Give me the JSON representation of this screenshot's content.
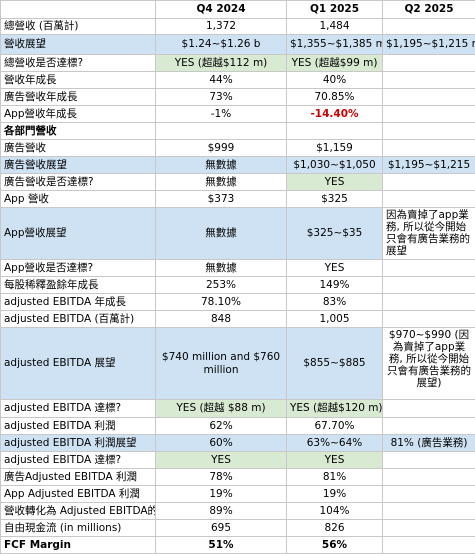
{
  "header": {
    "col0": "總營收 (百萬計)",
    "q4_2024": "Q4 2024",
    "q1_2025": "Q1 2025",
    "q2_2025": "Q2 2025"
  },
  "rows": [
    {
      "label": "總營收 (百萬計)",
      "q4": "1,372",
      "q1": "1,484",
      "q2": ""
    },
    {
      "label": "營收展望",
      "q4": "$1.24~$1.26 b",
      "q1": "$1,355~$1,385 m",
      "q2": "$1,195~$1,215 m"
    },
    {
      "label": "總營收是否達標?",
      "q4": "YES (超越$112 m)",
      "q1": "YES (超越$99 m)",
      "q2": ""
    },
    {
      "label": "營收年成長",
      "q4": "44%",
      "q1": "40%",
      "q2": ""
    },
    {
      "label": "廣告營收年成長",
      "q4": "73%",
      "q1": "70.85%",
      "q2": ""
    },
    {
      "label": "App營收年成長",
      "q4": "-1%",
      "q1": "-14.40%",
      "q2": ""
    },
    {
      "label": "各部門營收",
      "q4": "",
      "q1": "",
      "q2": ""
    },
    {
      "label": "廣告營收",
      "q4": "$999",
      "q1": "$1,159",
      "q2": ""
    },
    {
      "label": "廣告營收展望",
      "q4": "無數據",
      "q1": "$1,030~$1,050",
      "q2": "$1,195~$1,215"
    },
    {
      "label": "廣告營收是否達標?",
      "q4": "無數據",
      "q1": "YES",
      "q2": ""
    },
    {
      "label": "App 營收",
      "q4": "$373",
      "q1": "$325",
      "q2": ""
    },
    {
      "label": "App營收展望",
      "q4": "無數據",
      "q1": "$325~$35",
      "q2": "因為賣掉了app業務, 所以從今開始只會有廣告業務的展望"
    },
    {
      "label": "App營收是否達標?",
      "q4": "無數據",
      "q1": "YES",
      "q2": ""
    },
    {
      "label": "每股稀釋盈餘年成長",
      "q4": "253%",
      "q1": "149%",
      "q2": ""
    },
    {
      "label": "adjusted EBITDA 年成長",
      "q4": "78.10%",
      "q1": "83%",
      "q2": ""
    },
    {
      "label": "adjusted EBITDA (百萬計)",
      "q4": "848",
      "q1": "1,005",
      "q2": ""
    },
    {
      "label": "adjusted EBITDA 展望",
      "q4": "$740 million and $760 million",
      "q1": "$855~$885",
      "q2": "$970~$990 (因為賣掉了app業務, 所以從今開始只會有廣告業務的展望)"
    },
    {
      "label": "adjusted EBITDA 達標?",
      "q4": "YES (超越 $88 m)",
      "q1": "YES (超越$120 m)",
      "q2": ""
    },
    {
      "label": "adjusted EBITDA 利潤",
      "q4": "62%",
      "q1": "67.70%",
      "q2": ""
    },
    {
      "label": "adjusted EBITDA 利潤展望",
      "q4": "60%",
      "q1": "63%~64%",
      "q2": "81% (廣告業務)"
    },
    {
      "label": "adjusted EBITDA 達標?",
      "q4": "YES",
      "q1": "YES",
      "q2": ""
    },
    {
      "label": "廣告Adjusted EBITDA 利潤",
      "q4": "78%",
      "q1": "81%",
      "q2": ""
    },
    {
      "label": "App Adjusted EBITDA 利潤",
      "q4": "19%",
      "q1": "19%",
      "q2": ""
    },
    {
      "label": "營收轉化為 Adjusted EBITDA的能力",
      "q4": "89%",
      "q1": "104%",
      "q2": ""
    },
    {
      "label": "自由現金流 (in millions)",
      "q4": "695",
      "q1": "826",
      "q2": ""
    },
    {
      "label": "FCF Margin",
      "q4": "51%",
      "q1": "56%",
      "q2": ""
    }
  ],
  "colors": {
    "outlook_row": "#cfe2f3",
    "target_met": "#d9ead3",
    "negative_text": "#cc0000",
    "grid": "#c8c8c8"
  }
}
